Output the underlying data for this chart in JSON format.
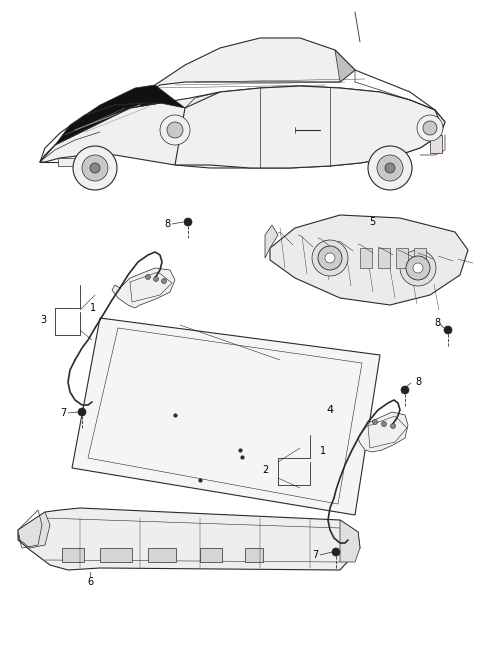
{
  "bg_color": "#ffffff",
  "fig_width": 4.8,
  "fig_height": 6.46,
  "dpi": 100,
  "line_color": "#2a2a2a",
  "light_fill": "#f0f0f0",
  "dark_fill": "#000000",
  "gray_fill": "#d8d8d8"
}
